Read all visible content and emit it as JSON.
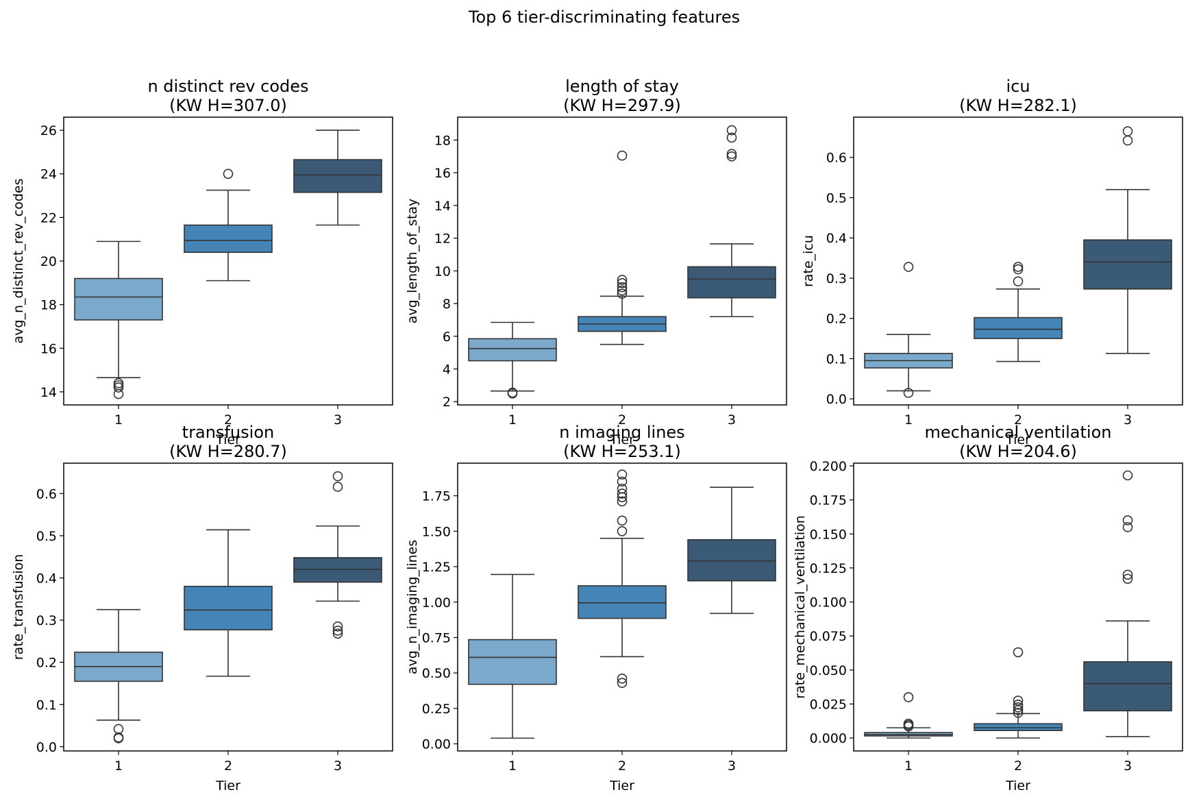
{
  "chart_data": {
    "suptitle": "Top 6 tier-discriminating features",
    "colors": {
      "tier1": "#7ba9cc",
      "tier2": "#4484b6",
      "tier3": "#3a5a76",
      "edge": "#333333"
    },
    "panels": [
      {
        "type": "box",
        "title_line1": "n distinct rev codes",
        "title_line2": "(KW H=307.0)",
        "xlabel": "Tier",
        "ylabel": "avg_n_distinct_rev_codes",
        "ylim": [
          13.4,
          26.6
        ],
        "yticks": [
          14,
          16,
          18,
          20,
          22,
          24,
          26
        ],
        "ytick_labels": [
          "14",
          "16",
          "18",
          "20",
          "22",
          "24",
          "26"
        ],
        "categories": [
          "1",
          "2",
          "3"
        ],
        "boxes": [
          {
            "tier": "1",
            "whislo": 14.65,
            "q1": 17.3,
            "med": 18.35,
            "q3": 19.2,
            "whishi": 20.9,
            "fliers": [
              14.2,
              14.3,
              14.4,
              13.9
            ]
          },
          {
            "tier": "2",
            "whislo": 19.1,
            "q1": 20.4,
            "med": 20.95,
            "q3": 21.65,
            "whishi": 23.25,
            "fliers": [
              24.0
            ]
          },
          {
            "tier": "3",
            "whislo": 21.65,
            "q1": 23.15,
            "med": 23.95,
            "q3": 24.65,
            "whishi": 26.0,
            "fliers": []
          }
        ]
      },
      {
        "type": "box",
        "title_line1": "length of stay",
        "title_line2": "(KW H=297.9)",
        "xlabel": "Tier",
        "ylabel": "avg_length_of_stay",
        "ylim": [
          1.8,
          19.4
        ],
        "yticks": [
          2,
          4,
          6,
          8,
          10,
          12,
          14,
          16,
          18
        ],
        "ytick_labels": [
          "2",
          "4",
          "6",
          "8",
          "10",
          "12",
          "14",
          "16",
          "18"
        ],
        "categories": [
          "1",
          "2",
          "3"
        ],
        "boxes": [
          {
            "tier": "1",
            "whislo": 2.65,
            "q1": 4.5,
            "med": 5.25,
            "q3": 5.85,
            "whishi": 6.85,
            "fliers": [
              2.5,
              2.55
            ]
          },
          {
            "tier": "2",
            "whislo": 5.5,
            "q1": 6.3,
            "med": 6.75,
            "q3": 7.2,
            "whishi": 8.45,
            "fliers": [
              8.6,
              8.8,
              9.0,
              9.25,
              9.45,
              17.05
            ]
          },
          {
            "tier": "3",
            "whislo": 7.2,
            "q1": 8.35,
            "med": 9.5,
            "q3": 10.25,
            "whishi": 11.65,
            "fliers": [
              17.0,
              17.15,
              18.15,
              18.6
            ]
          }
        ]
      },
      {
        "type": "box",
        "title_line1": "icu",
        "title_line2": "(KW H=282.1)",
        "xlabel": "Tier",
        "ylabel": "rate_icu",
        "ylim": [
          -0.015,
          0.7
        ],
        "yticks": [
          0.0,
          0.1,
          0.2,
          0.3,
          0.4,
          0.5,
          0.6
        ],
        "ytick_labels": [
          "0.0",
          "0.1",
          "0.2",
          "0.3",
          "0.4",
          "0.5",
          "0.6"
        ],
        "categories": [
          "1",
          "2",
          "3"
        ],
        "boxes": [
          {
            "tier": "1",
            "whislo": 0.02,
            "q1": 0.077,
            "med": 0.095,
            "q3": 0.113,
            "whishi": 0.16,
            "fliers": [
              0.015,
              0.328
            ]
          },
          {
            "tier": "2",
            "whislo": 0.093,
            "q1": 0.15,
            "med": 0.173,
            "q3": 0.202,
            "whishi": 0.273,
            "fliers": [
              0.292,
              0.322,
              0.328
            ]
          },
          {
            "tier": "3",
            "whislo": 0.113,
            "q1": 0.273,
            "med": 0.34,
            "q3": 0.395,
            "whishi": 0.52,
            "fliers": [
              0.642,
              0.665
            ]
          }
        ]
      },
      {
        "type": "box",
        "title_line1": "transfusion",
        "title_line2": "(KW H=280.7)",
        "xlabel": "Tier",
        "ylabel": "rate_transfusion",
        "ylim": [
          -0.01,
          0.672
        ],
        "yticks": [
          0.0,
          0.1,
          0.2,
          0.3,
          0.4,
          0.5,
          0.6
        ],
        "ytick_labels": [
          "0.0",
          "0.1",
          "0.2",
          "0.3",
          "0.4",
          "0.5",
          "0.6"
        ],
        "categories": [
          "1",
          "2",
          "3"
        ],
        "boxes": [
          {
            "tier": "1",
            "whislo": 0.063,
            "q1": 0.155,
            "med": 0.19,
            "q3": 0.224,
            "whishi": 0.325,
            "fliers": [
              0.042,
              0.022,
              0.02
            ]
          },
          {
            "tier": "2",
            "whislo": 0.167,
            "q1": 0.277,
            "med": 0.324,
            "q3": 0.38,
            "whishi": 0.514,
            "fliers": []
          },
          {
            "tier": "3",
            "whislo": 0.345,
            "q1": 0.39,
            "med": 0.42,
            "q3": 0.448,
            "whishi": 0.523,
            "fliers": [
              0.285,
              0.275,
              0.268,
              0.616,
              0.641
            ]
          }
        ]
      },
      {
        "type": "box",
        "title_line1": "n imaging lines",
        "title_line2": "(KW H=253.1)",
        "xlabel": "Tier",
        "ylabel": "avg_n_imaging_lines",
        "ylim": [
          -0.05,
          1.98
        ],
        "yticks": [
          0.0,
          0.25,
          0.5,
          0.75,
          1.0,
          1.25,
          1.5,
          1.75
        ],
        "ytick_labels": [
          "0.00",
          "0.25",
          "0.50",
          "0.75",
          "1.00",
          "1.25",
          "1.50",
          "1.75"
        ],
        "categories": [
          "1",
          "2",
          "3"
        ],
        "boxes": [
          {
            "tier": "1",
            "whislo": 0.04,
            "q1": 0.42,
            "med": 0.61,
            "q3": 0.735,
            "whishi": 1.195,
            "fliers": []
          },
          {
            "tier": "2",
            "whislo": 0.615,
            "q1": 0.885,
            "med": 0.995,
            "q3": 1.115,
            "whishi": 1.45,
            "fliers": [
              0.46,
              0.43,
              1.5,
              1.575,
              1.71,
              1.74,
              1.765,
              1.8,
              1.85,
              1.9
            ]
          },
          {
            "tier": "3",
            "whislo": 0.92,
            "q1": 1.15,
            "med": 1.29,
            "q3": 1.44,
            "whishi": 1.81,
            "fliers": []
          }
        ]
      },
      {
        "type": "box",
        "title_line1": "mechanical ventilation",
        "title_line2": "(KW H=204.6)",
        "xlabel": "Tier",
        "ylabel": "rate_mechanical_ventilation",
        "ylim": [
          -0.0095,
          0.202
        ],
        "yticks": [
          0.0,
          0.025,
          0.05,
          0.075,
          0.1,
          0.125,
          0.15,
          0.175,
          0.2
        ],
        "ytick_labels": [
          "0.000",
          "0.025",
          "0.050",
          "0.075",
          "0.100",
          "0.125",
          "0.150",
          "0.175",
          "0.200"
        ],
        "categories": [
          "1",
          "2",
          "3"
        ],
        "boxes": [
          {
            "tier": "1",
            "whislo": 0.0,
            "q1": 0.0015,
            "med": 0.0025,
            "q3": 0.004,
            "whishi": 0.0075,
            "fliers": [
              0.0085,
              0.0095,
              0.0105,
              0.03
            ]
          },
          {
            "tier": "2",
            "whislo": 0.0,
            "q1": 0.0055,
            "med": 0.0075,
            "q3": 0.0105,
            "whishi": 0.018,
            "fliers": [
              0.0185,
              0.0205,
              0.0225,
              0.0245,
              0.0275,
              0.063
            ]
          },
          {
            "tier": "3",
            "whislo": 0.001,
            "q1": 0.02,
            "med": 0.04,
            "q3": 0.056,
            "whishi": 0.086,
            "fliers": [
              0.117,
              0.12,
              0.155,
              0.16,
              0.193
            ]
          }
        ]
      }
    ]
  }
}
